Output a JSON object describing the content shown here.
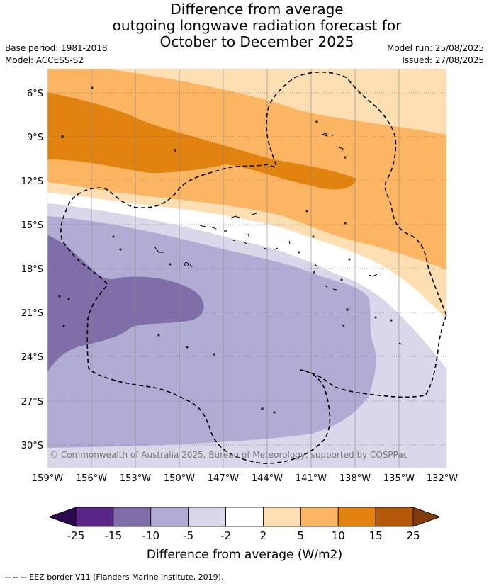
{
  "title": {
    "line1": "Difference from average",
    "line2": "outgoing longwave radiation forecast for",
    "line3": "October to December 2025"
  },
  "meta": {
    "base_period": "Base period: 1981-2018",
    "model": "Model: ACCESS-S2",
    "model_run": "Model run: 25/08/2025",
    "issued": "Issued: 27/08/2025"
  },
  "map": {
    "lat_labels": [
      "6°S",
      "9°S",
      "12°S",
      "15°S",
      "18°S",
      "21°S",
      "24°S",
      "27°S",
      "30°S"
    ],
    "lon_labels": [
      "159°W",
      "156°W",
      "153°W",
      "150°W",
      "147°W",
      "144°W",
      "141°W",
      "138°W",
      "135°W",
      "132°W"
    ],
    "copyright": "© Commonwealth of Australia 2025, Bureau of Meteorology, supported by COSPPac"
  },
  "colorbar": {
    "ticks": [
      "-25",
      "-15",
      "-10",
      "-5",
      "-2",
      "2",
      "5",
      "10",
      "15",
      "25"
    ],
    "colors": [
      "#2d0a4e",
      "#5a2589",
      "#7f6ea8",
      "#b1acd3",
      "#d8d8ea",
      "#ffffff",
      "#fedfb4",
      "#fcb562",
      "#e2820f",
      "#b45907",
      "#7f3b08"
    ],
    "label": "Difference from average (W/m2)"
  },
  "footer": {
    "legend_text": "--  --  -- EEZ border V11 (Flanders Marine Institute, 2019)."
  }
}
